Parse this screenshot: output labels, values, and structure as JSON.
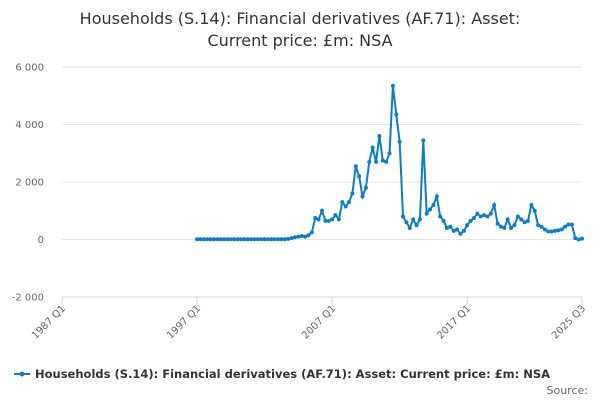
{
  "chart_data": {
    "type": "line",
    "title": [
      "Households (S.14): Financial derivatives (AF.71): Asset:",
      "Current price: £m: NSA"
    ],
    "categories": [
      "1987 Q1",
      null,
      null,
      null,
      null,
      null,
      null,
      null,
      null,
      null,
      null,
      null,
      null,
      null,
      null,
      null,
      null,
      null,
      null,
      null,
      null,
      null,
      null,
      null,
      null,
      null,
      null,
      null,
      null,
      null,
      null,
      null,
      null,
      null,
      null,
      null,
      null,
      null,
      null,
      null,
      "1997 Q1",
      null,
      null,
      null,
      null,
      null,
      null,
      null,
      null,
      null,
      null,
      null,
      null,
      null,
      null,
      null,
      null,
      null,
      null,
      null,
      null,
      null,
      null,
      null,
      null,
      null,
      null,
      null,
      null,
      null,
      null,
      null,
      null,
      null,
      null,
      null,
      null,
      null,
      null,
      null,
      "2007 Q1",
      null,
      null,
      null,
      null,
      null,
      null,
      null,
      null,
      null,
      null,
      null,
      null,
      null,
      null,
      null,
      null,
      null,
      null,
      null,
      null,
      null,
      null,
      null,
      null,
      null,
      null,
      null,
      null,
      null,
      null,
      null,
      null,
      null,
      null,
      null,
      null,
      null,
      null,
      null,
      "2017 Q1",
      null,
      null,
      null,
      null,
      null,
      null,
      null,
      null,
      null,
      null,
      null,
      null,
      null,
      null,
      null,
      null,
      null,
      null,
      null,
      null,
      null,
      null,
      null,
      null,
      null,
      null,
      null,
      null,
      null,
      null,
      null,
      null,
      null,
      "2025 Q3"
    ],
    "series": [
      {
        "name": "Households (S.14): Financial derivatives (AF.71): Asset: Current price: £m: NSA",
        "color": "#0f7dc2",
        "values": [
          null,
          null,
          null,
          null,
          null,
          null,
          null,
          null,
          null,
          null,
          null,
          null,
          null,
          null,
          null,
          null,
          null,
          null,
          null,
          null,
          null,
          null,
          null,
          null,
          null,
          null,
          null,
          null,
          null,
          null,
          null,
          null,
          null,
          null,
          null,
          null,
          null,
          null,
          null,
          null,
          10,
          10,
          10,
          10,
          10,
          10,
          10,
          10,
          10,
          10,
          10,
          10,
          10,
          10,
          10,
          10,
          10,
          10,
          10,
          10,
          10,
          10,
          10,
          10,
          10,
          10,
          10,
          20,
          50,
          80,
          100,
          120,
          100,
          150,
          250,
          750,
          700,
          1000,
          650,
          650,
          700,
          850,
          700,
          1300,
          1150,
          1300,
          1600,
          2550,
          2200,
          1500,
          1800,
          2700,
          3200,
          2700,
          3600,
          2750,
          2700,
          3000,
          5350,
          4350,
          3400,
          800,
          600,
          400,
          700,
          500,
          700,
          3450,
          900,
          1050,
          1200,
          1500,
          800,
          650,
          400,
          450,
          300,
          350,
          200,
          300,
          500,
          650,
          750,
          900,
          800,
          850,
          800,
          900,
          1200,
          550,
          450,
          400,
          700,
          400,
          500,
          800,
          700,
          600,
          650,
          1200,
          1000,
          500,
          450,
          350,
          280,
          280,
          300,
          320,
          350,
          450,
          520,
          520,
          50,
          0,
          30
        ]
      }
    ],
    "ylim": [
      -2000,
      6000
    ],
    "yticks": [
      {
        "value": -2000,
        "label": "-2 000"
      },
      0,
      {
        "value": 2000,
        "label": "2 000"
      },
      {
        "value": 4000,
        "label": "4 000"
      },
      {
        "value": 6000,
        "label": "6 000"
      }
    ],
    "grid": true,
    "legend": "bottom",
    "source_label": "Source:"
  }
}
